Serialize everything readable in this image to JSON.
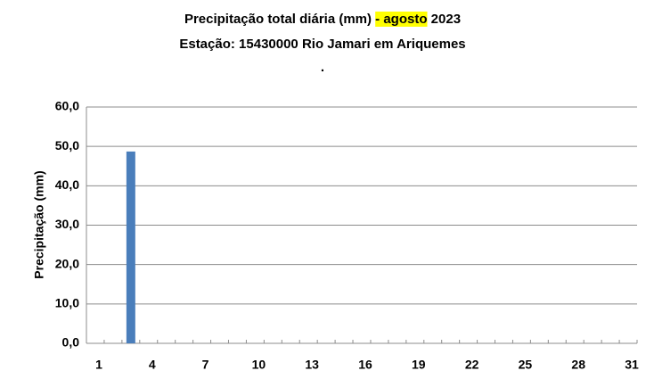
{
  "chart_data": {
    "type": "bar",
    "title": {
      "text": "Precipitação total diária (mm) ",
      "highlight": "- agosto",
      "year": " 2023"
    },
    "subtitle": "Estação:  15430000    Rio Jamari em Ariquemes",
    "note": ".",
    "y_label": "Precipitação (mm)",
    "categories": [
      "1",
      null,
      null,
      "4",
      null,
      null,
      "7",
      null,
      null,
      "10",
      null,
      null,
      "13",
      null,
      null,
      "16",
      null,
      null,
      "19",
      null,
      null,
      "22",
      null,
      null,
      "25",
      null,
      null,
      "28",
      null,
      null,
      "31"
    ],
    "values": [
      0,
      0,
      48.7,
      0,
      0,
      0,
      0,
      0,
      0,
      0,
      0,
      0,
      0,
      0,
      0,
      0,
      0,
      0,
      0,
      0,
      0,
      0,
      0,
      0,
      0,
      0,
      0,
      0,
      0,
      0,
      0
    ],
    "color": "#4a7ebb",
    "ylim": [
      0,
      60
    ],
    "yticks": [
      {
        "value": 0,
        "label": "0,0"
      },
      {
        "value": 10,
        "label": "10,0"
      },
      {
        "value": 20,
        "label": "20,0"
      },
      {
        "value": 30,
        "label": "30,0"
      },
      {
        "value": 40,
        "label": "40,0"
      },
      {
        "value": 50,
        "label": "50,0"
      },
      {
        "value": 60,
        "label": "60,0"
      }
    ],
    "grid": true
  }
}
